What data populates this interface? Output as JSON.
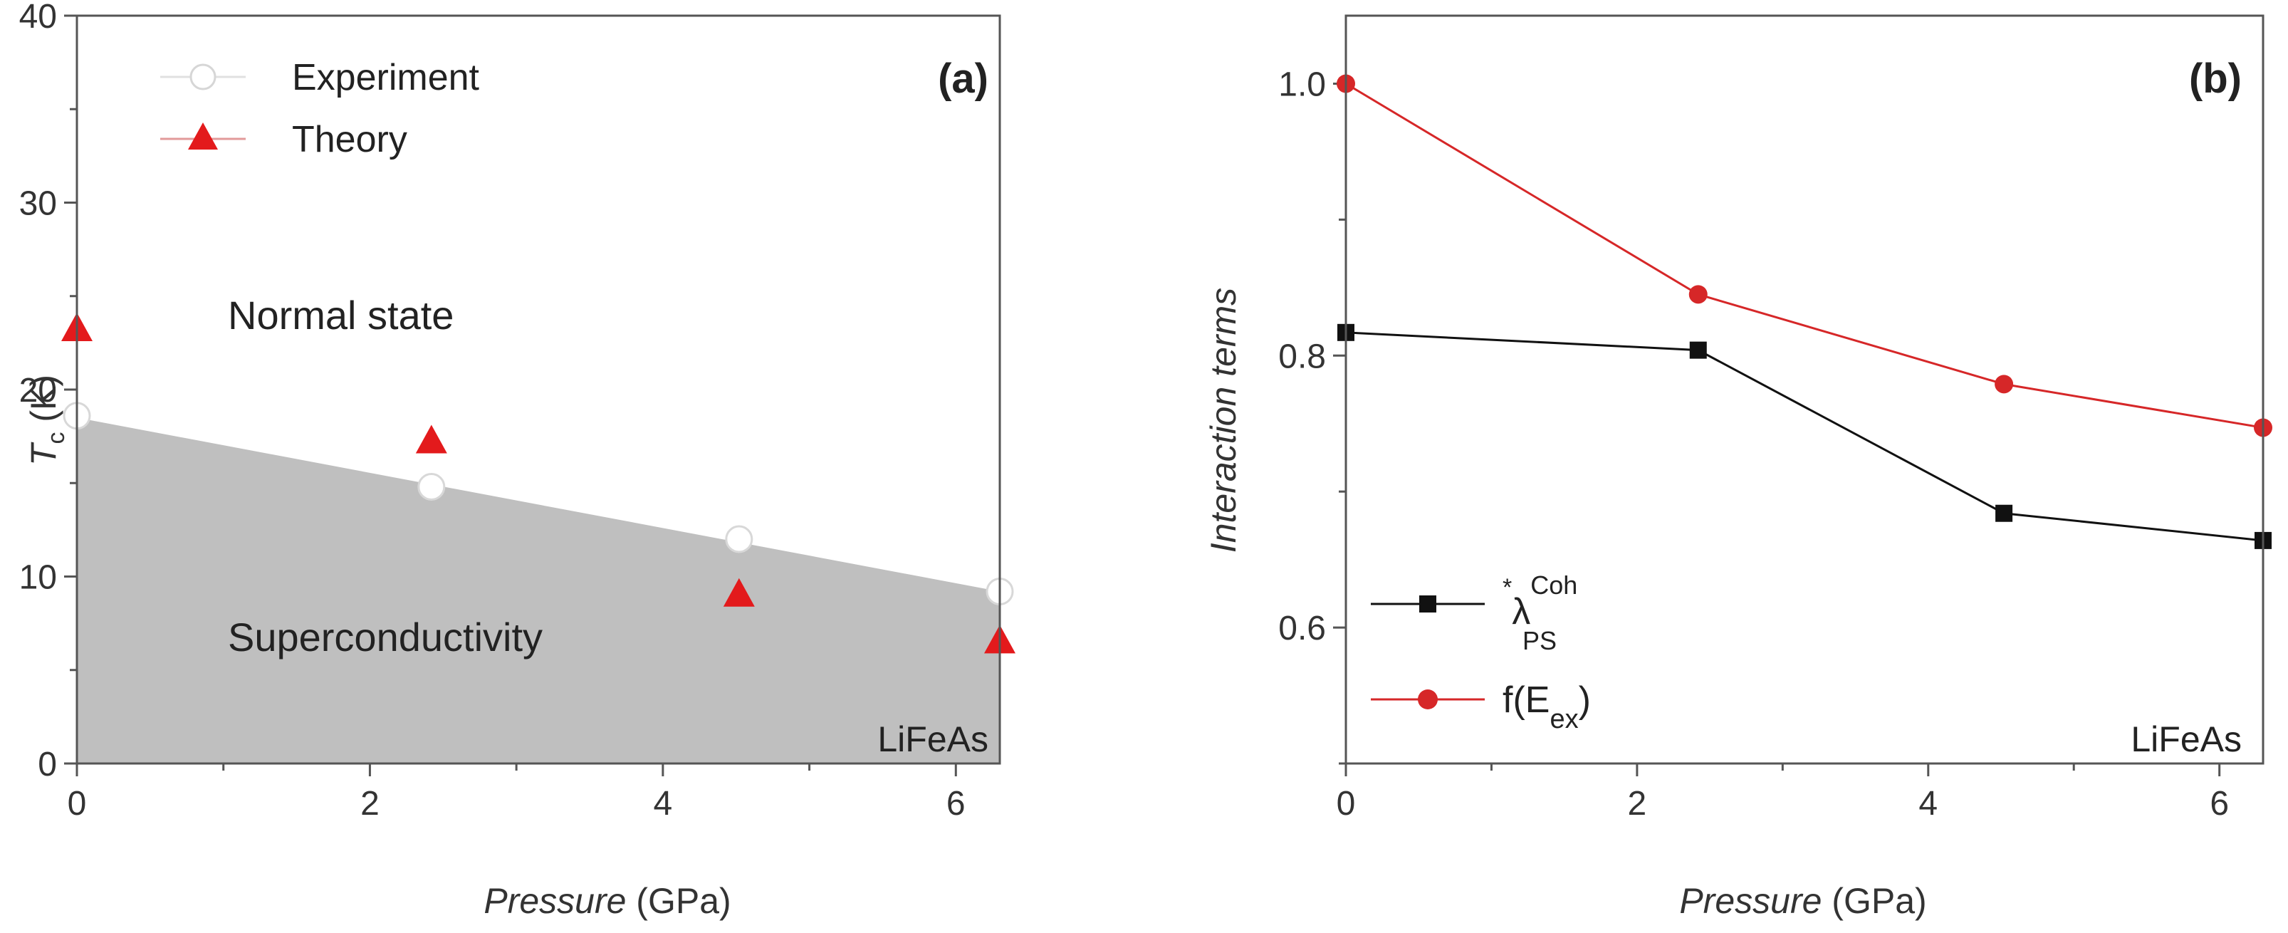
{
  "chart_data": [
    {
      "type": "scatter",
      "panel_label": "(a)",
      "xlabel_italic": "Pressure",
      "xlabel_unit": " (GPa)",
      "ylabel_symbol": "T",
      "ylabel_sub": "c",
      "ylabel_unit": " (K)",
      "xlim": [
        0,
        6.3
      ],
      "ylim": [
        0,
        40
      ],
      "xticks": [
        "0",
        "2",
        "4",
        "6"
      ],
      "xtick_values": [
        0,
        2,
        4,
        6
      ],
      "yticks": [
        "0",
        "10",
        "20",
        "30",
        "40"
      ],
      "ytick_values": [
        0,
        10,
        20,
        30,
        40
      ],
      "legend_position": "top-left",
      "shaded_region": {
        "x": [
          0,
          6.3
        ],
        "y_top": [
          18.5,
          9.2
        ],
        "color": "#bfbfbf",
        "label": "Superconductivity"
      },
      "annotations": [
        "Normal state",
        "Superconductivity"
      ],
      "sample": "LiFeAs",
      "series": [
        {
          "name": "Experiment",
          "marker": "circle",
          "color": "#ffffff",
          "x": [
            0,
            2.42,
            4.52,
            6.3
          ],
          "y": [
            18.6,
            14.8,
            12.0,
            9.2
          ]
        },
        {
          "name": "Theory",
          "marker": "triangle",
          "color": "#e31a1c",
          "x": [
            0,
            2.42,
            4.52,
            6.3
          ],
          "y": [
            23.2,
            17.2,
            9.0,
            6.5
          ]
        }
      ]
    },
    {
      "type": "line",
      "panel_label": "(b)",
      "xlabel_italic": "Pressure",
      "xlabel_unit": " (GPa)",
      "ylabel": "Interaction terms",
      "xlim": [
        0,
        6.3
      ],
      "ylim": [
        0.5,
        1.05
      ],
      "xticks": [
        "0",
        "2",
        "4",
        "6"
      ],
      "xtick_values": [
        0,
        2,
        4,
        6
      ],
      "yticks": [
        "0.6",
        "0.8",
        "1.0"
      ],
      "ytick_values": [
        0.6,
        0.8,
        1.0
      ],
      "legend_position": "bottom-left",
      "sample": "LiFeAs",
      "series": [
        {
          "name_prefix": "*",
          "name_main": "λ",
          "name_sup": "Coh",
          "name_sub": "PS",
          "marker": "square",
          "color": "#111111",
          "x": [
            0,
            2.42,
            4.52,
            6.3
          ],
          "y": [
            0.817,
            0.804,
            0.684,
            0.664
          ]
        },
        {
          "name_main": "f(E",
          "name_sub": "ex",
          "name_suffix": ")",
          "marker": "circle",
          "color": "#d62728",
          "x": [
            0,
            2.42,
            4.52,
            6.3
          ],
          "y": [
            1.0,
            0.845,
            0.779,
            0.747
          ]
        }
      ]
    }
  ]
}
